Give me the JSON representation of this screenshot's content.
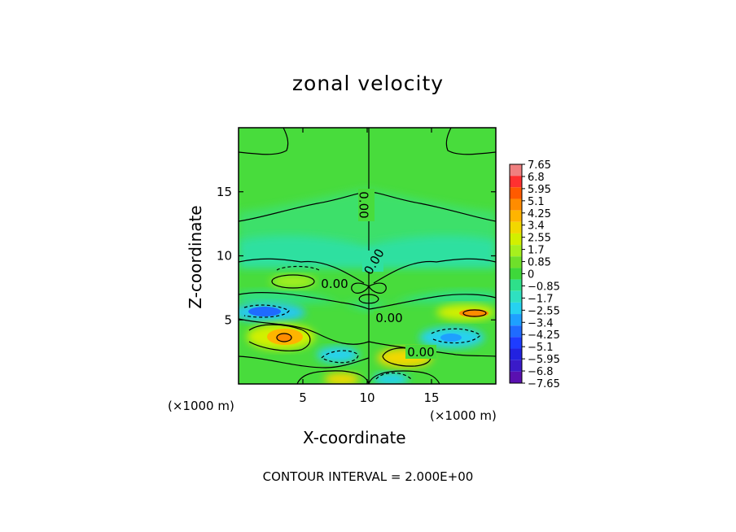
{
  "chart_data": {
    "type": "heatmap",
    "title": "zonal velocity",
    "xlabel": "X-coordinate",
    "ylabel": "Z-coordinate",
    "x_unit_label": "(×1000 m)",
    "x_unit_label_secondary": "(×1000 m)",
    "xlim": [
      0,
      20
    ],
    "ylim": [
      0,
      20
    ],
    "x_ticks": [
      5,
      10,
      15
    ],
    "y_ticks": [
      5,
      10,
      15
    ],
    "footer": "CONTOUR INTERVAL = 2.000E+00",
    "contour_interval": 2.0,
    "contour_labels": [
      "0.00",
      "0.00",
      "0.00",
      "0.00",
      "0.00"
    ],
    "colorbar_levels": [
      "7.65",
      "6.8",
      "5.95",
      "5.1",
      "4.25",
      "3.4",
      "2.55",
      "1.7",
      "0.85",
      "0",
      "−0.85",
      "−1.7",
      "−2.55",
      "−3.4",
      "−4.25",
      "−5.1",
      "−5.95",
      "−6.8",
      "−7.65"
    ],
    "colorbar_colors": [
      "#f08080",
      "#ff3030",
      "#ff5a00",
      "#ff8c00",
      "#ffb400",
      "#f2d800",
      "#d2f000",
      "#a6f01e",
      "#6fe02a",
      "#3ed83a",
      "#2ee08a",
      "#2fe0c0",
      "#26d2f0",
      "#1ea0ff",
      "#1f6bff",
      "#1e3cff",
      "#2222e0",
      "#3a1ac8",
      "#5a10b0"
    ],
    "background_color": "#48dc3c",
    "features": [
      {
        "kind": "positive_max",
        "x": 3.5,
        "z": 3.6,
        "value": 4.8
      },
      {
        "kind": "positive_max",
        "x": 17.5,
        "z": 5.5,
        "value": 4.5
      },
      {
        "kind": "negative_min",
        "x": 2.5,
        "z": 5.5,
        "value": -4.0
      },
      {
        "kind": "negative_min",
        "x": 16.3,
        "z": 3.6,
        "value": -4.2
      },
      {
        "kind": "positive_lobe",
        "x": 12.5,
        "z": 1.9,
        "value": 2.6
      },
      {
        "kind": "negative_lobe",
        "x": 8.0,
        "z": 2.3,
        "value": -2.2
      },
      {
        "kind": "positive_lobe",
        "x": 8.2,
        "z": 0.4,
        "value": 3.0
      },
      {
        "kind": "negative_lobe",
        "x": 11.5,
        "z": 0.4,
        "value": -1.8
      }
    ]
  }
}
